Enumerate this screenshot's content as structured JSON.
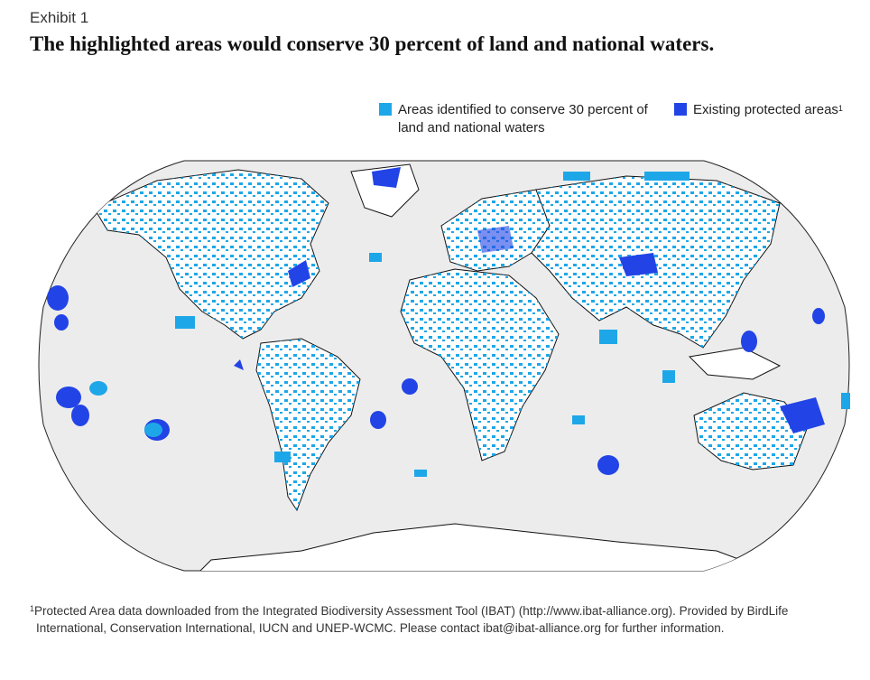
{
  "header": {
    "exhibit": "Exhibit 1",
    "title": "The highlighted areas would conserve 30 percent of land and national waters."
  },
  "legend": {
    "items": [
      {
        "label": "Areas identified to conserve 30 percent of land and national waters",
        "color": "#1ea7e8"
      },
      {
        "label": "Existing protected areas",
        "marker": "1",
        "color": "#2244e6"
      }
    ]
  },
  "map": {
    "projection": "robinson-like world map",
    "ocean_color": "#ececec",
    "land_color": "#ffffff",
    "outline_color": "#111111"
  },
  "footnote": {
    "marker": "1",
    "line1": "Protected Area data downloaded from the Integrated Biodiversity Assessment Tool (IBAT) (http://www.ibat-alliance.org). Provided by BirdLife",
    "line2": "International, Conservation International, IUCN and UNEP-WCMC. Please contact ibat@ibat-alliance.org for further information."
  }
}
